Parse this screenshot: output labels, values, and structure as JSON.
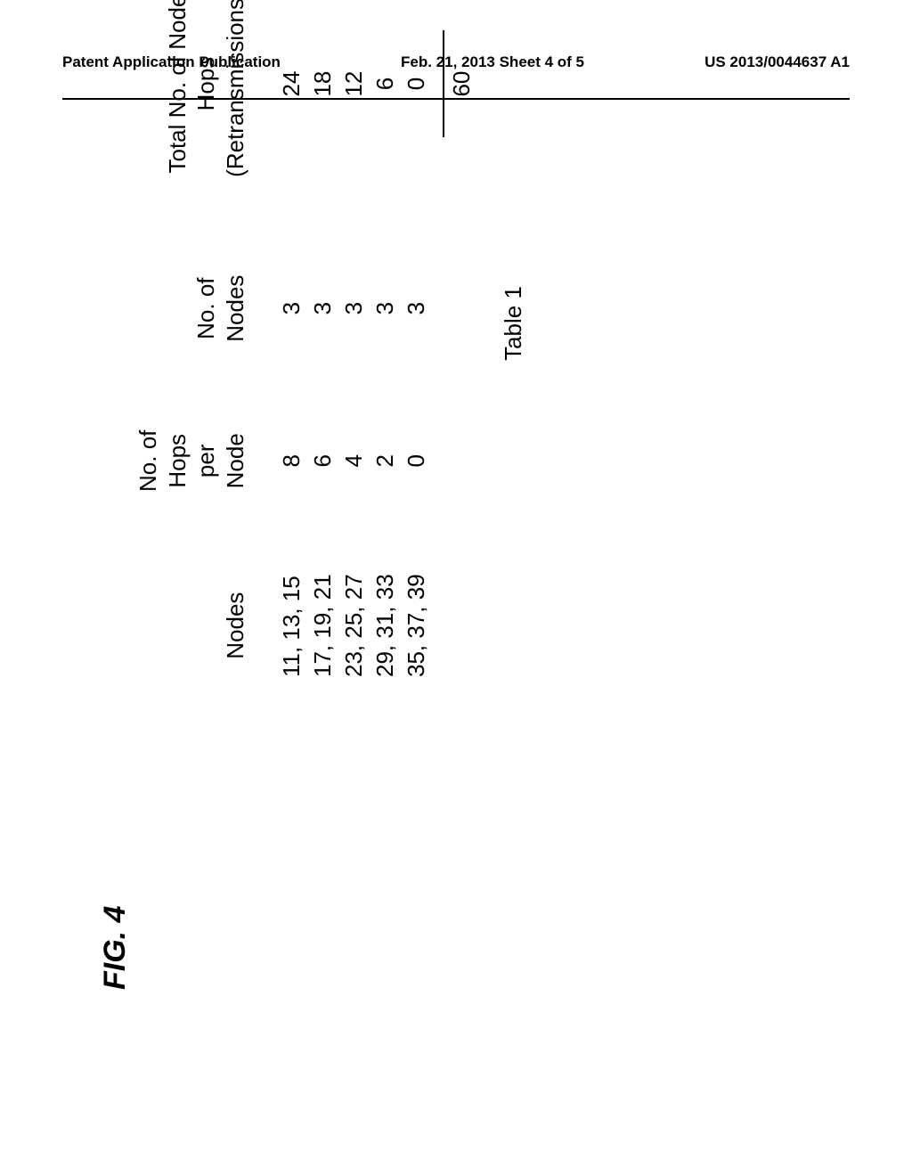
{
  "header": {
    "left": "Patent Application Publication",
    "center": "Feb. 21, 2013  Sheet 4 of 5",
    "right": "US 2013/0044637 A1"
  },
  "table": {
    "caption": "Table 1",
    "columns": [
      "Nodes",
      "No. of Hops\nper Node",
      "No. of Nodes",
      "Total No. of Node\nHops\n(Retransmissions)"
    ],
    "rows": [
      {
        "nodes": "11, 13, 15",
        "hops_per_node": "8",
        "num_nodes": "3",
        "total_hops": "24"
      },
      {
        "nodes": "17, 19, 21",
        "hops_per_node": "6",
        "num_nodes": "3",
        "total_hops": "18"
      },
      {
        "nodes": "23, 25, 27",
        "hops_per_node": "4",
        "num_nodes": "3",
        "total_hops": "12"
      },
      {
        "nodes": "29, 31, 33",
        "hops_per_node": "2",
        "num_nodes": "3",
        "total_hops": "6"
      },
      {
        "nodes": "35, 37, 39",
        "hops_per_node": "0",
        "num_nodes": "3",
        "total_hops": "0"
      }
    ],
    "sum": "60"
  },
  "figure_label": "FIG. 4",
  "style": {
    "background_color": "#ffffff",
    "text_color": "#000000",
    "rule_color": "#000000",
    "header_fontsize_pt": 13,
    "table_fontsize_pt": 20,
    "caption_fontsize_pt": 20,
    "figlabel_fontsize_pt": 26,
    "rotation_deg": -90
  }
}
